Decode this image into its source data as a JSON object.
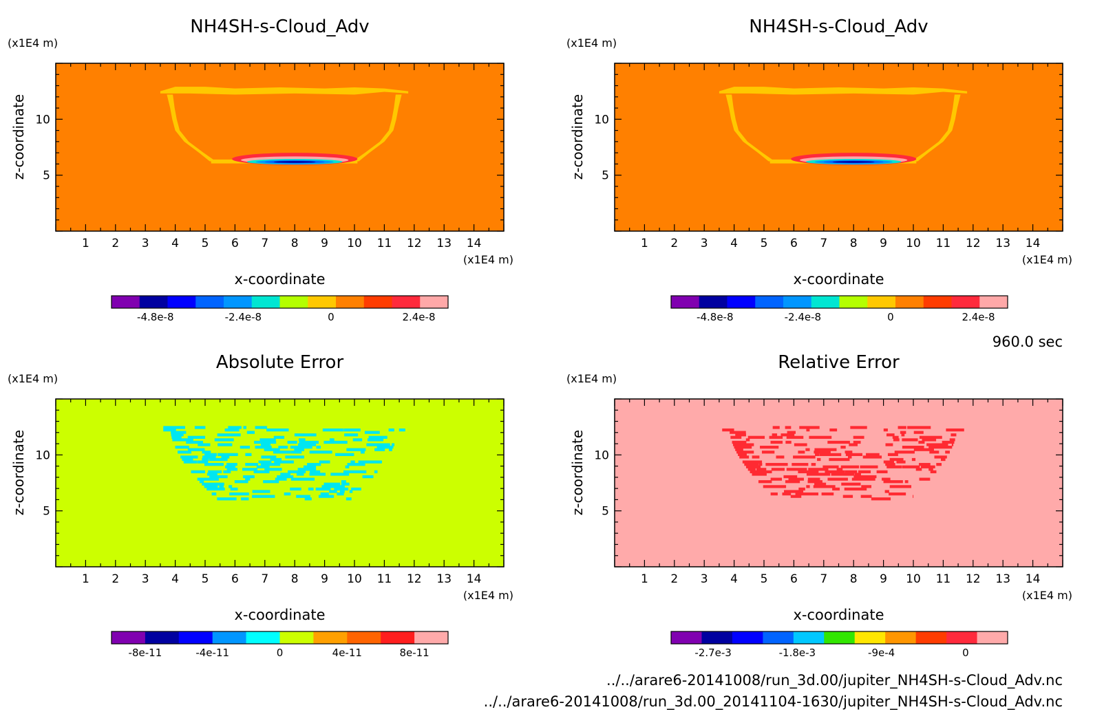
{
  "time_label": "960.0 sec",
  "files": [
    "../../arare6-20141008/run_3d.00/jupiter_NH4SH-s-Cloud_Adv.nc",
    "../../arare6-20141008/run_3d.00_20141104-1630/jupiter_NH4SH-s-Cloud_Adv.nc"
  ],
  "chart_data": [
    {
      "type": "heatmap",
      "title": "NH4SH-s-Cloud_Adv",
      "xlabel": "x-coordinate",
      "ylabel": "z-coordinate",
      "x_unit": "(x1E4 m)",
      "y_unit": "(x1E4 m)",
      "xlim": [
        0,
        15
      ],
      "ylim": [
        0,
        15
      ],
      "x_ticks": [
        1,
        2,
        3,
        4,
        5,
        6,
        7,
        8,
        9,
        10,
        11,
        12,
        13,
        14
      ],
      "y_ticks": [
        5,
        10
      ],
      "field": "cloud",
      "background_color": "#ff8000",
      "colorbar": {
        "colors": [
          "#8000b0",
          "#0000a0",
          "#0000ff",
          "#0064ff",
          "#0096ff",
          "#00e6d2",
          "#b4ff00",
          "#ffc800",
          "#ff8000",
          "#ff3c00",
          "#ff2a3c",
          "#ffa8a8"
        ],
        "tick_labels": [
          "-4.8e-8",
          "-2.4e-8",
          "0",
          "2.4e-8"
        ],
        "tick_values": [
          -4.8e-08,
          -2.4e-08,
          0,
          2.4e-08
        ],
        "range": [
          -6e-08,
          3.2e-08
        ]
      }
    },
    {
      "type": "heatmap",
      "title": "NH4SH-s-Cloud_Adv",
      "xlabel": "x-coordinate",
      "ylabel": "z-coordinate",
      "x_unit": "(x1E4 m)",
      "y_unit": "(x1E4 m)",
      "xlim": [
        0,
        15
      ],
      "ylim": [
        0,
        15
      ],
      "x_ticks": [
        1,
        2,
        3,
        4,
        5,
        6,
        7,
        8,
        9,
        10,
        11,
        12,
        13,
        14
      ],
      "y_ticks": [
        5,
        10
      ],
      "field": "cloud",
      "background_color": "#ff8000",
      "colorbar": {
        "colors": [
          "#8000b0",
          "#0000a0",
          "#0000ff",
          "#0064ff",
          "#0096ff",
          "#00e6d2",
          "#b4ff00",
          "#ffc800",
          "#ff8000",
          "#ff3c00",
          "#ff2a3c",
          "#ffa8a8"
        ],
        "tick_labels": [
          "-4.8e-8",
          "-2.4e-8",
          "0",
          "2.4e-8"
        ],
        "tick_values": [
          -4.8e-08,
          -2.4e-08,
          0,
          2.4e-08
        ],
        "range": [
          -6e-08,
          3.2e-08
        ]
      }
    },
    {
      "type": "heatmap",
      "title": "Absolute Error",
      "xlabel": "x-coordinate",
      "ylabel": "z-coordinate",
      "x_unit": "(x1E4 m)",
      "y_unit": "(x1E4 m)",
      "xlim": [
        0,
        15
      ],
      "ylim": [
        0,
        15
      ],
      "x_ticks": [
        1,
        2,
        3,
        4,
        5,
        6,
        7,
        8,
        9,
        10,
        11,
        12,
        13,
        14
      ],
      "y_ticks": [
        5,
        10
      ],
      "field": "noise",
      "background_color": "#ccff00",
      "noise_color": "#00e6f0",
      "colorbar": {
        "colors": [
          "#8000b0",
          "#0000a0",
          "#0000ff",
          "#0096ff",
          "#00ffff",
          "#ccff00",
          "#ffa000",
          "#ff6400",
          "#ff1e1e",
          "#ffaaaa"
        ],
        "tick_labels": [
          "-8e-11",
          "-4e-11",
          "0",
          "4e-11",
          "8e-11"
        ],
        "tick_values": [
          -8e-11,
          -4e-11,
          0,
          4e-11,
          8e-11
        ],
        "range": [
          -1e-10,
          1e-10
        ]
      }
    },
    {
      "type": "heatmap",
      "title": "Relative Error",
      "xlabel": "x-coordinate",
      "ylabel": "z-coordinate",
      "x_unit": "(x1E4 m)",
      "y_unit": "(x1E4 m)",
      "xlim": [
        0,
        15
      ],
      "ylim": [
        0,
        15
      ],
      "x_ticks": [
        1,
        2,
        3,
        4,
        5,
        6,
        7,
        8,
        9,
        10,
        11,
        12,
        13,
        14
      ],
      "y_ticks": [
        5,
        10
      ],
      "field": "noise",
      "background_color": "#ffaaaa",
      "noise_color": "#ff2a32",
      "colorbar": {
        "colors": [
          "#8000b0",
          "#0000a0",
          "#0000ff",
          "#0064ff",
          "#00c8ff",
          "#32e600",
          "#ffe600",
          "#ff9600",
          "#ff3c00",
          "#ff2a3c",
          "#ffaaaa"
        ],
        "tick_labels": [
          "-2.7e-3",
          "-1.8e-3",
          "-9e-4",
          "0"
        ],
        "tick_values": [
          -0.0027,
          -0.0018,
          -0.0009,
          0
        ],
        "range": [
          -0.00315,
          0.00045
        ]
      }
    }
  ]
}
